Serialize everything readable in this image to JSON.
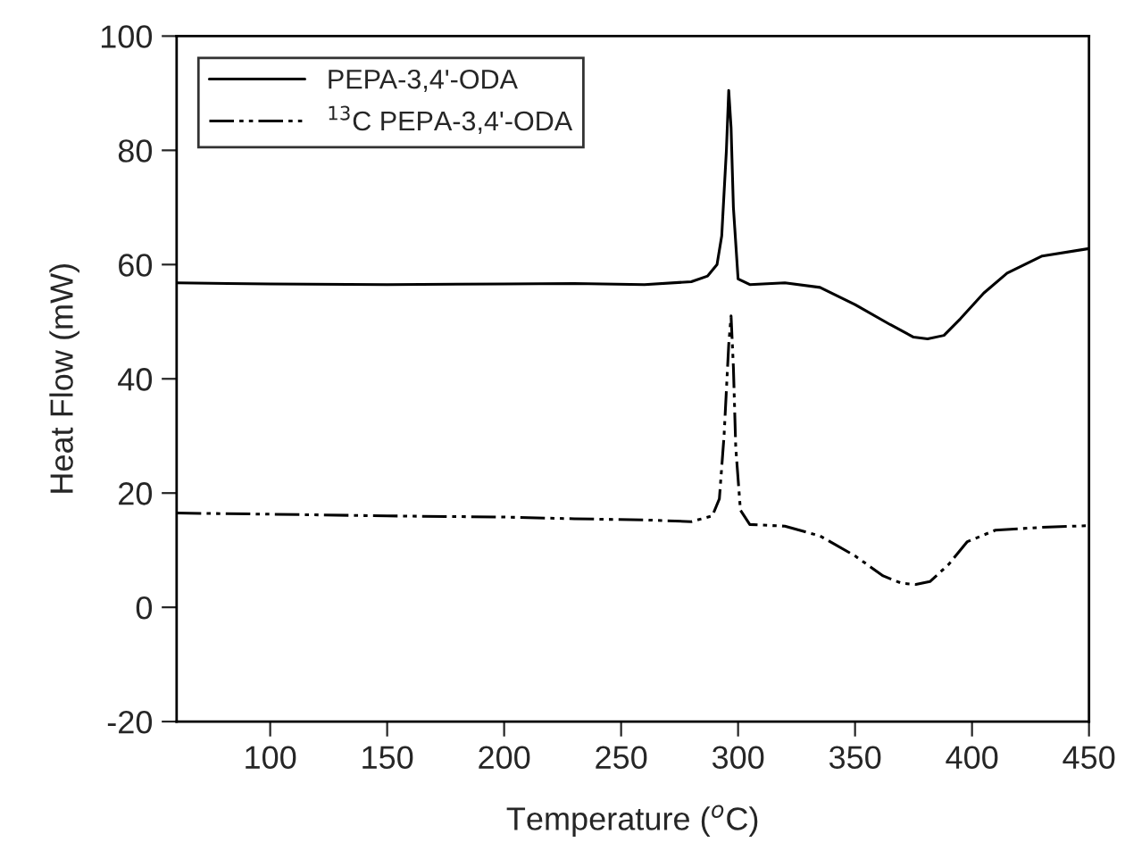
{
  "chart_data": {
    "type": "line",
    "xlabel": "Temperature ($^{o}$C)",
    "ylabel": "Heat Flow (mW)",
    "xlim": [
      60,
      450
    ],
    "ylim": [
      -20,
      100
    ],
    "xticks": [
      100,
      150,
      200,
      250,
      300,
      350,
      400,
      450
    ],
    "yticks": [
      -20,
      0,
      20,
      40,
      60,
      80,
      100
    ],
    "grid": false,
    "legend": "top left",
    "marker": "none",
    "series": [
      {
        "name": "PEPA-3,4'-ODA",
        "color": "#000000",
        "line_style": "solid",
        "x": [
          60,
          100,
          150,
          200,
          230,
          260,
          280,
          287,
          291,
          293,
          295,
          296,
          297,
          298,
          300,
          305,
          320,
          335,
          350,
          365,
          375,
          381,
          388,
          395,
          405,
          415,
          430,
          450
        ],
        "values": [
          56.8,
          56.6,
          56.5,
          56.6,
          56.7,
          56.5,
          57,
          58,
          60,
          65,
          80,
          90.5,
          84,
          70,
          57.5,
          56.5,
          56.8,
          56,
          53,
          49.5,
          47.3,
          47,
          47.6,
          50.5,
          55,
          58.5,
          61.5,
          62.8
        ]
      },
      {
        "name": "$^{13}$C PEPA-3,4'-ODA",
        "color": "#000000",
        "line_style": "dashed",
        "x": [
          60,
          100,
          150,
          200,
          230,
          260,
          280,
          289,
          292,
          294,
          296,
          297,
          298,
          299,
          301,
          305,
          320,
          335,
          350,
          362,
          370,
          376,
          382,
          390,
          398,
          410,
          430,
          450
        ],
        "values": [
          16.5,
          16.3,
          16,
          15.8,
          15.5,
          15.3,
          15,
          16,
          19,
          30,
          46,
          51,
          42,
          28,
          17,
          14.5,
          14.2,
          12.5,
          9,
          5.5,
          4.2,
          4,
          4.5,
          7.5,
          11.5,
          13.5,
          14,
          14.3
        ]
      }
    ]
  }
}
